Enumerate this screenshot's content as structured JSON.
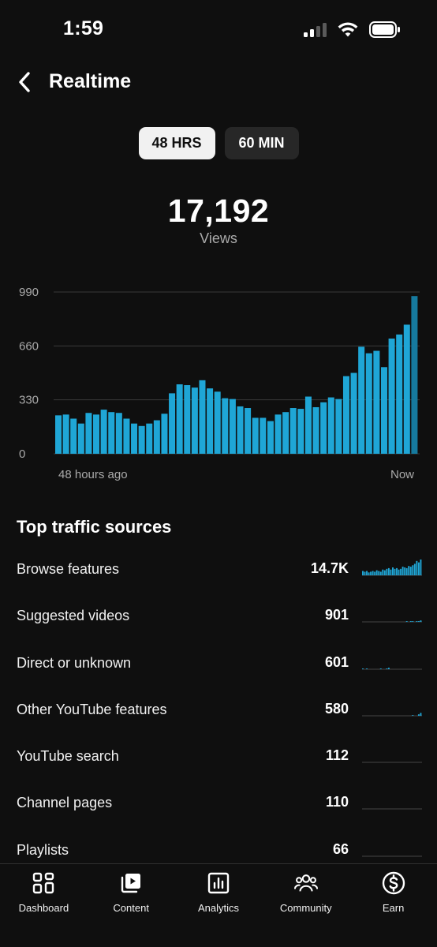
{
  "status": {
    "time": "1:59"
  },
  "header": {
    "title": "Realtime"
  },
  "range": {
    "options": [
      "48 HRS",
      "60 MIN"
    ],
    "selected": "48 HRS"
  },
  "summary": {
    "views": "17,192",
    "label": "Views"
  },
  "chart_data": {
    "type": "bar",
    "title": "",
    "y_ticks": [
      "990",
      "660",
      "330",
      "0"
    ],
    "ylim": [
      0,
      990
    ],
    "x_labels": {
      "start": "48 hours ago",
      "end": "Now"
    },
    "bar_color": "#1fa6d6",
    "values": [
      235,
      240,
      215,
      185,
      250,
      240,
      270,
      255,
      250,
      215,
      185,
      170,
      185,
      205,
      245,
      370,
      425,
      420,
      405,
      450,
      400,
      380,
      340,
      335,
      290,
      280,
      220,
      220,
      200,
      240,
      255,
      280,
      275,
      350,
      285,
      315,
      345,
      335,
      475,
      495,
      655,
      615,
      630,
      530,
      705,
      730,
      790,
      965
    ]
  },
  "traffic": {
    "title": "Top traffic sources",
    "sources": [
      {
        "name": "Browse features",
        "value": "14.7K",
        "spark": [
          6,
          5,
          6,
          4,
          5,
          6,
          5,
          7,
          6,
          5,
          8,
          7,
          9,
          10,
          8,
          11,
          9,
          10,
          8,
          9,
          12,
          11,
          10,
          13,
          12,
          14,
          16,
          20,
          18,
          22
        ]
      },
      {
        "name": "Suggested videos",
        "value": "901",
        "spark": [
          0,
          0,
          0,
          0,
          0,
          0,
          0,
          0,
          0,
          0,
          0,
          0,
          0,
          0,
          0,
          0,
          0,
          0,
          0,
          0,
          0,
          0,
          1,
          0,
          1,
          1,
          0,
          1,
          1,
          2
        ]
      },
      {
        "name": "Direct or unknown",
        "value": "601",
        "spark": [
          1,
          0,
          1,
          0,
          0,
          0,
          0,
          0,
          0,
          1,
          0,
          0,
          1,
          2,
          0,
          0,
          0,
          0,
          0,
          0,
          0,
          0,
          0,
          0,
          0,
          0,
          0,
          0,
          0,
          0
        ]
      },
      {
        "name": "Other YouTube features",
        "value": "580",
        "spark": [
          0,
          0,
          0,
          0,
          0,
          0,
          0,
          0,
          0,
          0,
          0,
          0,
          0,
          0,
          0,
          0,
          0,
          0,
          0,
          0,
          0,
          0,
          0,
          0,
          0,
          1,
          0,
          0,
          2,
          4
        ]
      },
      {
        "name": "YouTube search",
        "value": "112",
        "spark": [
          0,
          0,
          0,
          0,
          0,
          0,
          0,
          0,
          0,
          0,
          0,
          0,
          0,
          0,
          0,
          0,
          0,
          0,
          0,
          0,
          0,
          0,
          0,
          0,
          0,
          0,
          0,
          0,
          0,
          0
        ]
      },
      {
        "name": "Channel pages",
        "value": "110",
        "spark": [
          0,
          0,
          0,
          0,
          0,
          0,
          0,
          0,
          0,
          0,
          0,
          0,
          0,
          0,
          0,
          0,
          0,
          0,
          0,
          0,
          0,
          0,
          0,
          0,
          0,
          0,
          0,
          0,
          0,
          0
        ]
      },
      {
        "name": "Playlists",
        "value": "66",
        "spark": [
          0,
          0,
          0,
          0,
          0,
          0,
          0,
          0,
          0,
          0,
          0,
          0,
          0,
          0,
          0,
          0,
          0,
          0,
          0,
          0,
          0,
          0,
          0,
          0,
          0,
          0,
          0,
          0,
          0,
          0
        ]
      }
    ]
  },
  "nav": {
    "items": [
      {
        "label": "Dashboard",
        "icon": "dashboard-icon"
      },
      {
        "label": "Content",
        "icon": "content-icon"
      },
      {
        "label": "Analytics",
        "icon": "analytics-icon"
      },
      {
        "label": "Community",
        "icon": "community-icon"
      },
      {
        "label": "Earn",
        "icon": "earn-icon"
      }
    ]
  }
}
